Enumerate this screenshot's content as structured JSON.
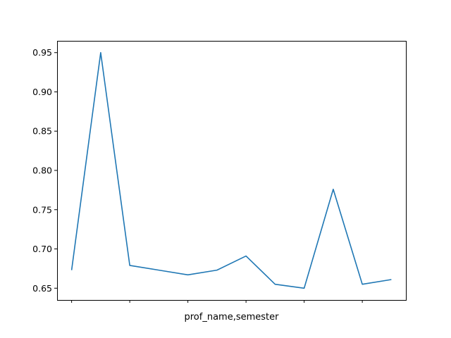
{
  "chart_data": {
    "type": "line",
    "title": "",
    "xlabel": "prof_name,semester",
    "ylabel": "",
    "x": [
      0,
      1,
      2,
      3,
      4,
      5,
      6,
      7,
      8,
      9,
      10,
      11
    ],
    "x_ticks": [
      0,
      2,
      4,
      6,
      8,
      10
    ],
    "x_tick_labels": [
      "",
      "",
      "",
      "",
      "",
      ""
    ],
    "xlim": [
      -0.5,
      11.5
    ],
    "ylim": [
      0.635,
      0.965
    ],
    "y_ticks": [
      0.65,
      0.7,
      0.75,
      0.8,
      0.85,
      0.9,
      0.95
    ],
    "y_tick_labels": [
      "0.65",
      "0.70",
      "0.75",
      "0.80",
      "0.85",
      "0.90",
      "0.95"
    ],
    "series": [
      {
        "values": [
          0.673,
          0.95,
          0.679,
          0.673,
          0.667,
          0.673,
          0.691,
          0.655,
          0.65,
          0.776,
          0.655,
          0.661
        ],
        "color": "#1f77b4"
      }
    ],
    "grid": false,
    "legend": "none"
  }
}
